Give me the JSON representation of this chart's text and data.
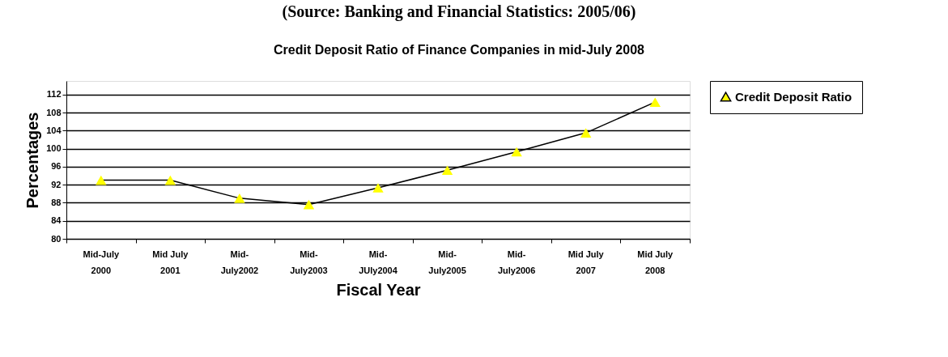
{
  "chart_data": {
    "type": "line",
    "title": "Credit Deposit Ratio of Finance Companies in mid-July 2008",
    "annotations": [
      "(Source: Banking and Financial Statistics: 2005/06)"
    ],
    "xlabel": "Fiscal Year",
    "ylabel": "Percentages",
    "categories": [
      "Mid-July\n2000",
      "Mid July\n2001",
      "Mid-\nJuly2002",
      "Mid-\nJuly2003",
      "Mid-\nJUly2004",
      "Mid-\nJuly2005",
      "Mid-\nJuly2006",
      "Mid July\n2007",
      "Mid July\n2008"
    ],
    "series": [
      {
        "name": "Credit Deposit Ratio",
        "color": "#000000",
        "values": [
          93.0,
          93.0,
          89.0,
          87.6,
          91.3,
          95.2,
          99.3,
          103.5,
          110.3
        ]
      }
    ],
    "ylim": [
      80,
      115
    ],
    "yticks": [
      80,
      84,
      88,
      92,
      96,
      100,
      104,
      108,
      112
    ],
    "grid": "y",
    "legend": "right",
    "marker": "triangle",
    "line_style": "solid"
  }
}
